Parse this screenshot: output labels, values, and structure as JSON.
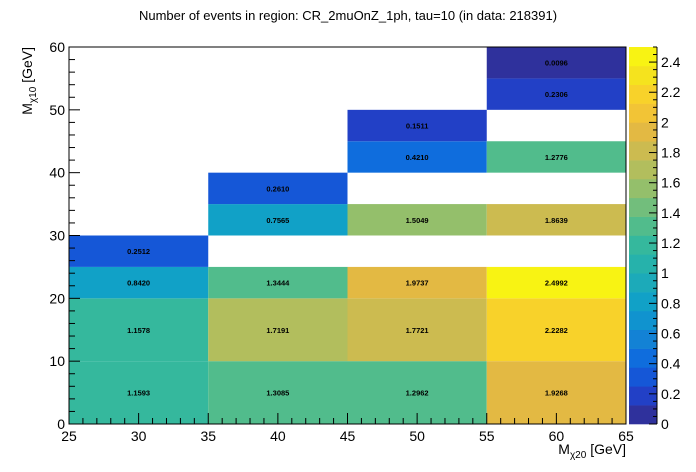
{
  "chart_data": {
    "type": "heatmap",
    "title": "Number of events in region: CR_2muOnZ_1ph, tau=10 (in data: 218391)",
    "xlabel": {
      "main": "M",
      "sub": "χ20",
      "unit": "[GeV]"
    },
    "ylabel": {
      "main": "M",
      "sub": "χ10",
      "unit": "[GeV]"
    },
    "xlim": [
      25,
      65
    ],
    "ylim": [
      0,
      60
    ],
    "x_ticks": [
      25,
      30,
      35,
      40,
      45,
      50,
      55,
      60,
      65
    ],
    "y_ticks": [
      0,
      10,
      20,
      30,
      40,
      50,
      60
    ],
    "z_range": [
      0,
      2.5
    ],
    "z_ticks": [
      0,
      0.2,
      0.4,
      0.6,
      0.8,
      1,
      1.2,
      1.4,
      1.6,
      1.8,
      2,
      2.2,
      2.4
    ],
    "colorbar_levels": 20,
    "cells": [
      {
        "x0": 25,
        "x1": 35,
        "y0": 0,
        "y1": 10,
        "value": 1.1593,
        "label": "1.1593"
      },
      {
        "x0": 25,
        "x1": 35,
        "y0": 10,
        "y1": 20,
        "value": 1.1578,
        "label": "1.1578"
      },
      {
        "x0": 25,
        "x1": 35,
        "y0": 20,
        "y1": 25,
        "value": 0.842,
        "label": "0.8420"
      },
      {
        "x0": 25,
        "x1": 35,
        "y0": 25,
        "y1": 30,
        "value": 0.2512,
        "label": "0.2512"
      },
      {
        "x0": 35,
        "x1": 45,
        "y0": 0,
        "y1": 10,
        "value": 1.3085,
        "label": "1.3085"
      },
      {
        "x0": 35,
        "x1": 45,
        "y0": 10,
        "y1": 20,
        "value": 1.7191,
        "label": "1.7191"
      },
      {
        "x0": 35,
        "x1": 45,
        "y0": 20,
        "y1": 25,
        "value": 1.3444,
        "label": "1.3444"
      },
      {
        "x0": 35,
        "x1": 45,
        "y0": 30,
        "y1": 35,
        "value": 0.7565,
        "label": "0.7565"
      },
      {
        "x0": 35,
        "x1": 45,
        "y0": 35,
        "y1": 40,
        "value": 0.261,
        "label": "0.2610"
      },
      {
        "x0": 45,
        "x1": 55,
        "y0": 0,
        "y1": 10,
        "value": 1.2962,
        "label": "1.2962"
      },
      {
        "x0": 45,
        "x1": 55,
        "y0": 10,
        "y1": 20,
        "value": 1.7721,
        "label": "1.7721"
      },
      {
        "x0": 45,
        "x1": 55,
        "y0": 20,
        "y1": 25,
        "value": 1.9737,
        "label": "1.9737"
      },
      {
        "x0": 45,
        "x1": 55,
        "y0": 30,
        "y1": 35,
        "value": 1.5049,
        "label": "1.5049"
      },
      {
        "x0": 45,
        "x1": 55,
        "y0": 40,
        "y1": 45,
        "value": 0.421,
        "label": "0.4210"
      },
      {
        "x0": 45,
        "x1": 55,
        "y0": 45,
        "y1": 50,
        "value": 0.1511,
        "label": "0.1511"
      },
      {
        "x0": 55,
        "x1": 65,
        "y0": 0,
        "y1": 10,
        "value": 1.9268,
        "label": "1.9268"
      },
      {
        "x0": 55,
        "x1": 65,
        "y0": 10,
        "y1": 20,
        "value": 2.2282,
        "label": "2.2282"
      },
      {
        "x0": 55,
        "x1": 65,
        "y0": 20,
        "y1": 25,
        "value": 2.4992,
        "label": "2.4992"
      },
      {
        "x0": 55,
        "x1": 65,
        "y0": 30,
        "y1": 35,
        "value": 1.8639,
        "label": "1.8639"
      },
      {
        "x0": 55,
        "x1": 65,
        "y0": 40,
        "y1": 45,
        "value": 1.2776,
        "label": "1.2776"
      },
      {
        "x0": 55,
        "x1": 65,
        "y0": 50,
        "y1": 55,
        "value": 0.2306,
        "label": "0.2306"
      },
      {
        "x0": 55,
        "x1": 65,
        "y0": 55,
        "y1": 60,
        "value": 0.0096,
        "label": "0.0096"
      }
    ],
    "colormap": [
      "#352a87",
      "#2241c8",
      "#0d64e0",
      "#1384d4",
      "#0d9ecc",
      "#1eacb6",
      "#2eb7a1",
      "#58bd88",
      "#8ebf6e",
      "#bdbe58",
      "#e1b844",
      "#f9c931",
      "#f5e21e",
      "#f9fb0e"
    ]
  }
}
